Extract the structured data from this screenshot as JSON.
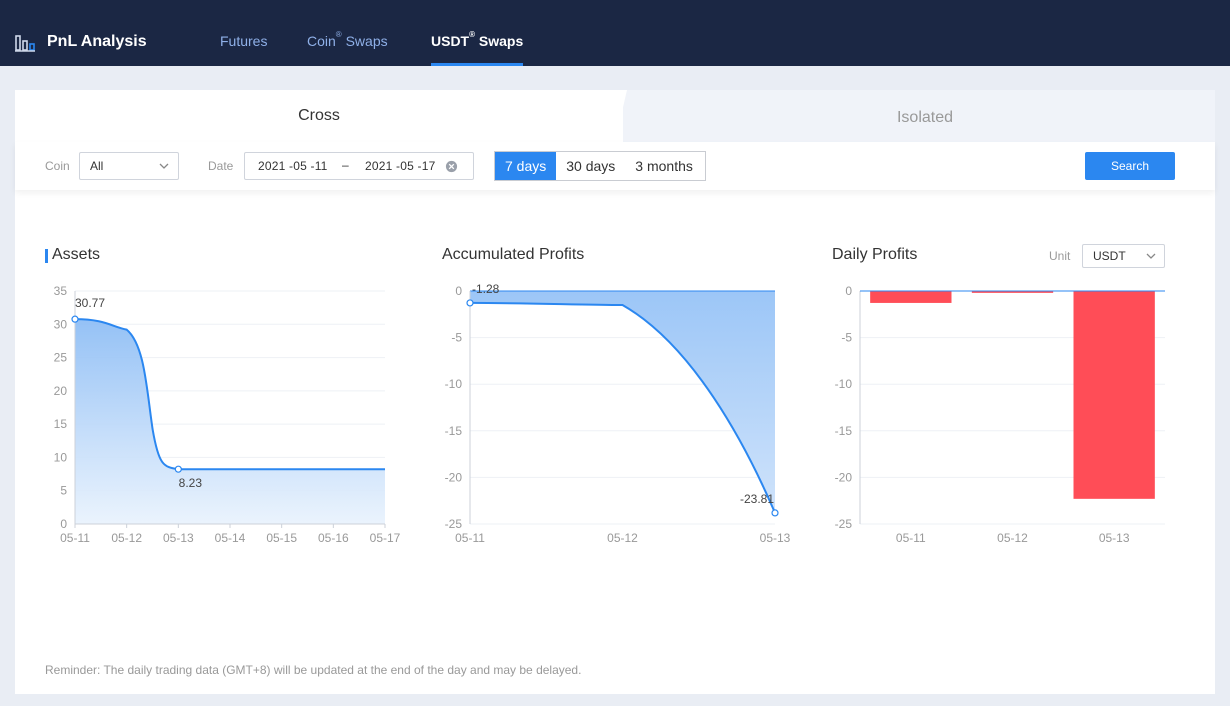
{
  "header": {
    "title": "PnL Analysis",
    "icon": "bar-chart-icon",
    "nav": [
      {
        "label": "Futures",
        "sup": ""
      },
      {
        "label_prefix": "Coin",
        "sup": "®",
        "label_suffix": " Swaps"
      },
      {
        "label_prefix": "USDT",
        "sup": "®",
        "label_suffix": " Swaps"
      }
    ],
    "active_nav": 2
  },
  "tabs": {
    "cross": "Cross",
    "isolated": "Isolated",
    "active": "cross"
  },
  "filters": {
    "coin_label": "Coin",
    "coin_value": "All",
    "date_label": "Date",
    "date_start": "2021 -05 -11",
    "date_separator": "–",
    "date_end": "2021 -05 -17",
    "ranges": [
      "7 days",
      "30 days",
      "3 months"
    ],
    "active_range": 0,
    "search_label": "Search"
  },
  "charts": {
    "assets_title": "Assets",
    "accumulated_title": "Accumulated Profits",
    "daily_title": "Daily Profits",
    "unit_label": "Unit",
    "unit_value": "USDT"
  },
  "colors": {
    "accent": "#2b87f0",
    "header_bg": "#1b2744",
    "loss_bar": "#ff4d57",
    "line": "#2b87f0"
  },
  "chart_data": [
    {
      "type": "area",
      "title": "Assets",
      "categories": [
        "05-11",
        "05-12",
        "05-13",
        "05-14",
        "05-15",
        "05-16",
        "05-17"
      ],
      "values": [
        30.77,
        29.2,
        8.23,
        8.23,
        8.23,
        8.23,
        8.23
      ],
      "point_labels": [
        {
          "index": 0,
          "text": "30.77"
        },
        {
          "index": 2,
          "text": "8.23"
        }
      ],
      "yticks": [
        0,
        5,
        10,
        15,
        20,
        25,
        30,
        35
      ],
      "ylim": [
        0,
        35
      ],
      "grid": true
    },
    {
      "type": "area",
      "title": "Accumulated Profits",
      "categories": [
        "05-11",
        "05-12",
        "05-13"
      ],
      "values": [
        -1.28,
        -1.5,
        -23.81
      ],
      "point_labels": [
        {
          "index": 0,
          "text": "-1.28"
        },
        {
          "index": 2,
          "text": "-23.81"
        }
      ],
      "yticks": [
        0,
        -5,
        -10,
        -15,
        -20,
        -25
      ],
      "ylim": [
        -25,
        0
      ],
      "grid": true
    },
    {
      "type": "bar",
      "title": "Daily Profits",
      "categories": [
        "05-11",
        "05-12",
        "05-13"
      ],
      "values": [
        -1.28,
        -0.2,
        -22.3
      ],
      "yticks": [
        0,
        -5,
        -10,
        -15,
        -20,
        -25
      ],
      "ylim": [
        -25,
        0
      ],
      "grid": true
    }
  ],
  "reminder": "Reminder: The daily trading data (GMT+8) will be updated at the end of the day and may be delayed."
}
